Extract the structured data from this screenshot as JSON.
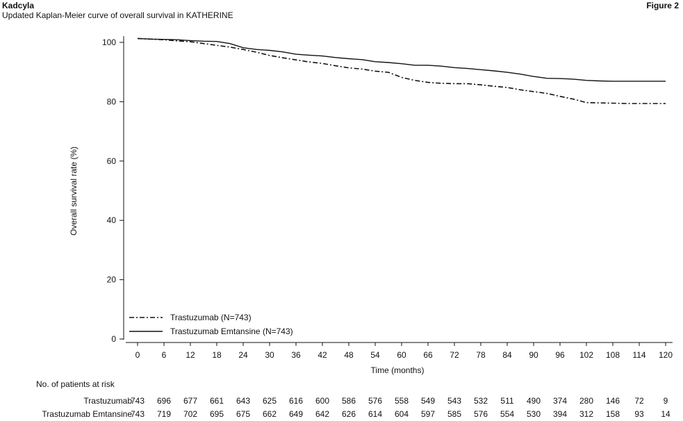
{
  "header": {
    "drug": "Kadcyla",
    "subtitle": "Updated Kaplan-Meier curve of overall survival in KATHERINE",
    "figure_label": "Figure 2"
  },
  "chart_data": {
    "type": "line",
    "title": "Updated Kaplan-Meier curve of overall survival in KATHERINE",
    "xlabel": "Time (months)",
    "ylabel": "Overall survival rate (%)",
    "xlim": [
      0,
      120
    ],
    "ylim": [
      0,
      100
    ],
    "x_ticks": [
      0,
      6,
      12,
      18,
      24,
      30,
      36,
      42,
      48,
      54,
      60,
      66,
      72,
      78,
      84,
      90,
      96,
      102,
      108,
      114,
      120
    ],
    "y_ticks": [
      0,
      20,
      40,
      60,
      80,
      100
    ],
    "grid": false,
    "legend_position": "bottom-left",
    "series": [
      {
        "name": "Trastuzumab (N=743)",
        "line_style": "dash-dot",
        "color": "#111111",
        "x": [
          0,
          3,
          6,
          9,
          12,
          15,
          18,
          21,
          24,
          27,
          30,
          33,
          36,
          39,
          42,
          45,
          48,
          51,
          54,
          57,
          60,
          63,
          66,
          69,
          72,
          75,
          78,
          81,
          84,
          87,
          90,
          93,
          96,
          99,
          102,
          105,
          108,
          111,
          114,
          117,
          120
        ],
        "y": [
          101.3,
          101.1,
          100.9,
          100.5,
          100.2,
          99.6,
          99.0,
          98.4,
          97.6,
          96.7,
          95.6,
          94.8,
          94.1,
          93.4,
          92.9,
          92.1,
          91.4,
          91.0,
          90.3,
          89.9,
          88.2,
          87.2,
          86.5,
          86.2,
          86.1,
          86.1,
          85.7,
          85.2,
          84.8,
          84.0,
          83.4,
          82.8,
          81.8,
          80.9,
          79.7,
          79.6,
          79.5,
          79.4,
          79.4,
          79.4,
          79.4
        ]
      },
      {
        "name": "Trastuzumab Emtansine (N=743)",
        "line_style": "solid",
        "color": "#111111",
        "x": [
          0,
          3,
          6,
          9,
          12,
          15,
          18,
          21,
          24,
          27,
          30,
          33,
          36,
          39,
          42,
          45,
          48,
          51,
          54,
          57,
          60,
          63,
          66,
          69,
          72,
          75,
          78,
          81,
          84,
          87,
          90,
          93,
          96,
          99,
          102,
          105,
          108,
          111,
          114,
          117,
          120
        ],
        "y": [
          101.3,
          101.1,
          101.0,
          100.9,
          100.6,
          100.4,
          100.3,
          99.6,
          98.2,
          97.6,
          97.3,
          96.8,
          96.0,
          95.7,
          95.4,
          94.9,
          94.5,
          94.2,
          93.5,
          93.2,
          92.8,
          92.3,
          92.3,
          92.0,
          91.5,
          91.2,
          90.8,
          90.4,
          89.9,
          89.3,
          88.5,
          87.9,
          87.8,
          87.6,
          87.2,
          87.0,
          86.9,
          86.9,
          86.9,
          86.9,
          86.9
        ]
      }
    ],
    "risk_table": {
      "title": "No. of patients at risk",
      "rows": [
        {
          "label": "Trastuzumab",
          "values": [
            "743",
            "696",
            "677",
            "661",
            "643",
            "625",
            "616",
            "600",
            "586",
            "576",
            "558",
            "549",
            "543",
            "532",
            "511",
            "490",
            "374",
            "280",
            "146",
            "72",
            "9"
          ]
        },
        {
          "label": "Trastuzumab Emtansine",
          "values": [
            "743",
            "719",
            "702",
            "695",
            "675",
            "662",
            "649",
            "642",
            "626",
            "614",
            "604",
            "597",
            "585",
            "576",
            "554",
            "530",
            "394",
            "312",
            "158",
            "93",
            "14"
          ]
        }
      ]
    }
  }
}
